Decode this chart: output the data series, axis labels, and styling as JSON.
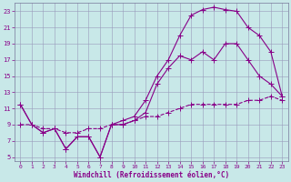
{
  "xlabel": "Windchill (Refroidissement éolien,°C)",
  "background_color": "#c8e8e8",
  "plot_bg_color": "#c8e8e8",
  "grid_color": "#9999bb",
  "line_color": "#880088",
  "xlim_min": -0.5,
  "xlim_max": 23.5,
  "ylim_min": 4.5,
  "ylim_max": 24,
  "xticks": [
    0,
    1,
    2,
    3,
    4,
    5,
    6,
    7,
    8,
    9,
    10,
    11,
    12,
    13,
    14,
    15,
    16,
    17,
    18,
    19,
    20,
    21,
    22,
    23
  ],
  "yticks": [
    5,
    7,
    9,
    11,
    13,
    15,
    17,
    19,
    21,
    23
  ],
  "curve_volatile_x": [
    0,
    1,
    2,
    3,
    4,
    5,
    6,
    7,
    8,
    9,
    10,
    11,
    12,
    13,
    14,
    15,
    16,
    17,
    18,
    19,
    20,
    21,
    22,
    23
  ],
  "curve_volatile_y": [
    11.5,
    9,
    8,
    8.5,
    6,
    7.5,
    7.5,
    5,
    9,
    9,
    9.5,
    10.5,
    14,
    16,
    17.5,
    17,
    18,
    17,
    19,
    19,
    17,
    15,
    14,
    12.5
  ],
  "curve_high_x": [
    0,
    1,
    2,
    3,
    4,
    5,
    6,
    7,
    8,
    9,
    10,
    11,
    12,
    13,
    14,
    15,
    16,
    17,
    18,
    19,
    20,
    21,
    22,
    23
  ],
  "curve_high_y": [
    11.5,
    9,
    8,
    8.5,
    6,
    7.5,
    7.5,
    5,
    9,
    9.5,
    10,
    12,
    15,
    17,
    20,
    22.5,
    23.2,
    23.5,
    23.2,
    23,
    21,
    20,
    18,
    12.5
  ],
  "curve_flat_x": [
    0,
    1,
    2,
    3,
    4,
    5,
    6,
    7,
    8,
    9,
    10,
    11,
    12,
    13,
    14,
    15,
    16,
    17,
    18,
    19,
    20,
    21,
    22,
    23
  ],
  "curve_flat_y": [
    9,
    9,
    8.5,
    8.5,
    8,
    8,
    8.5,
    8.5,
    9,
    9,
    9.5,
    10,
    10,
    10.5,
    11,
    11.5,
    11.5,
    11.5,
    11.5,
    11.5,
    12,
    12,
    12.5,
    12
  ]
}
